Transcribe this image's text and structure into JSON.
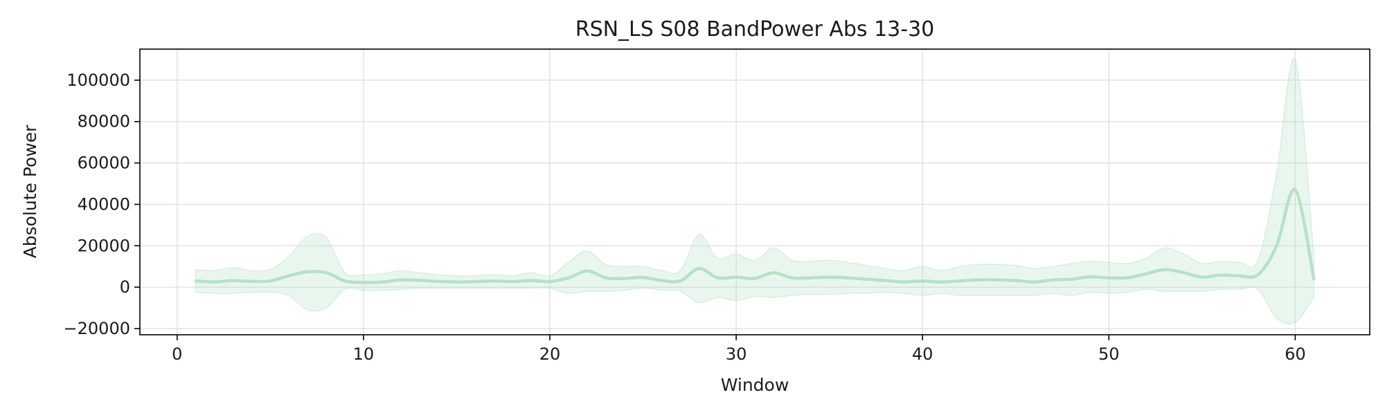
{
  "chart_data": {
    "type": "area",
    "title": "RSN_LS S08 BandPower Abs 13-30",
    "xlabel": "Window",
    "ylabel": "Absolute Power",
    "xlim": [
      -2,
      64
    ],
    "ylim": [
      -23000,
      115000
    ],
    "xticks": [
      0,
      10,
      20,
      30,
      40,
      50,
      60
    ],
    "yticks": [
      -20000,
      0,
      20000,
      40000,
      60000,
      80000,
      100000
    ],
    "ytick_labels": [
      "−20000",
      "0",
      "20000",
      "40000",
      "60000",
      "80000",
      "100000"
    ],
    "grid": true,
    "legend": "none",
    "line_color": "#b5e2c6",
    "band_color": "#b5e2c6",
    "series": [
      {
        "x": [
          1,
          2,
          3,
          4,
          5,
          6,
          7,
          8,
          9,
          10,
          11,
          12,
          13,
          14,
          15,
          16,
          17,
          18,
          19,
          20,
          21,
          22,
          23,
          24,
          25,
          26,
          27,
          28,
          29,
          30,
          31,
          32,
          33,
          34,
          35,
          36,
          37,
          38,
          39,
          40,
          41,
          42,
          43,
          44,
          45,
          46,
          47,
          48,
          49,
          50,
          51,
          52,
          53,
          54,
          55,
          56,
          57,
          58,
          59,
          60,
          61
        ],
        "mean": [
          3000,
          2500,
          3200,
          2800,
          3000,
          5500,
          7500,
          7000,
          3000,
          2300,
          2500,
          3500,
          3300,
          2800,
          2500,
          2700,
          3000,
          2700,
          3200,
          2700,
          4500,
          7800,
          4500,
          4200,
          4700,
          3200,
          3000,
          9000,
          4500,
          4800,
          4200,
          7000,
          4500,
          4500,
          4800,
          4500,
          3800,
          3200,
          2500,
          3000,
          2500,
          3000,
          3500,
          3500,
          3200,
          2500,
          3500,
          3800,
          5000,
          4500,
          4500,
          6500,
          8500,
          7000,
          4800,
          5800,
          5500,
          6000,
          20000,
          47000,
          4000
        ],
        "upper": [
          8500,
          8000,
          9500,
          8000,
          8500,
          15000,
          24500,
          24000,
          7000,
          6000,
          6500,
          8000,
          7000,
          6000,
          5500,
          5500,
          6000,
          5500,
          7000,
          5500,
          12000,
          17500,
          11000,
          10000,
          10000,
          8000,
          8000,
          25500,
          14000,
          16000,
          13000,
          19000,
          13000,
          12500,
          13000,
          12000,
          10500,
          9000,
          8000,
          10000,
          8000,
          10000,
          11000,
          11000,
          10500,
          9000,
          10000,
          11500,
          12500,
          12000,
          11500,
          14000,
          19000,
          16000,
          11500,
          12500,
          12000,
          13000,
          55000,
          110000,
          15000
        ],
        "lower": [
          -2500,
          -3000,
          -3000,
          -2500,
          -2500,
          -4000,
          -11000,
          -10000,
          -1000,
          -1500,
          -1500,
          -1000,
          -500,
          -500,
          -500,
          -500,
          -500,
          -500,
          -500,
          -500,
          -3000,
          -2000,
          -2000,
          -1500,
          -500,
          -1500,
          -2000,
          -7500,
          -5000,
          -6500,
          -4500,
          -5000,
          -4000,
          -3500,
          -3500,
          -3000,
          -3000,
          -2500,
          -3000,
          -4000,
          -3000,
          -4000,
          -4000,
          -4000,
          -4000,
          -4000,
          -3000,
          -4000,
          -2500,
          -3000,
          -2500,
          -1000,
          -2000,
          -2000,
          -2000,
          -1000,
          -1000,
          -1000,
          -15000,
          -17000,
          -5000
        ]
      }
    ]
  }
}
